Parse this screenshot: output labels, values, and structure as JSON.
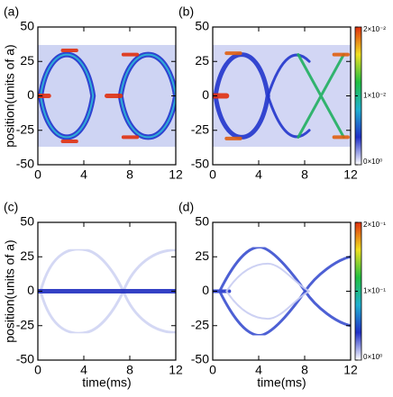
{
  "chart_data": [
    {
      "type": "heatmap",
      "title": "(a)",
      "ylabel": "position(units of a)",
      "xlim": [
        0,
        12
      ],
      "xticks": [
        0,
        4,
        8,
        12
      ],
      "ylim": [
        -50,
        50
      ],
      "yticks": [
        50,
        25,
        0,
        -25,
        -50
      ]
    },
    {
      "type": "heatmap",
      "title": "(b)",
      "xlim": [
        0,
        12
      ],
      "xticks": [
        0,
        4,
        8,
        12
      ],
      "ylim": [
        -50,
        50
      ],
      "yticks": [
        50,
        25,
        0,
        -25,
        -50
      ],
      "colorbar": {
        "lim": [
          0,
          0.02
        ],
        "ticks": [
          {
            "value": 0.02,
            "label": "2×10⁻²"
          },
          {
            "value": 0.01,
            "label": "1×10⁻²"
          },
          {
            "value": 0,
            "label": "0×10⁰"
          }
        ],
        "colors": [
          "#ffffff",
          "#2030c8",
          "#20b0d0",
          "#20c040",
          "#f0e020",
          "#e03010"
        ]
      }
    },
    {
      "type": "heatmap",
      "title": "(c)",
      "xlabel": "time(ms)",
      "ylabel": "position(units of a)",
      "xlim": [
        0,
        12
      ],
      "xticks": [
        0,
        4,
        8,
        12
      ],
      "ylim": [
        -50,
        50
      ],
      "yticks": [
        50,
        25,
        0,
        -25,
        -50
      ]
    },
    {
      "type": "heatmap",
      "title": "(d)",
      "xlabel": "time(ms)",
      "xlim": [
        0,
        12
      ],
      "xticks": [
        0,
        4,
        8,
        12
      ],
      "ylim": [
        -50,
        50
      ],
      "yticks": [
        50,
        25,
        0,
        -25,
        -50
      ],
      "colorbar": {
        "lim": [
          0,
          0.2
        ],
        "ticks": [
          {
            "value": 0.2,
            "label": "2×10⁻¹"
          },
          {
            "value": 0.1,
            "label": "1×10⁻¹"
          },
          {
            "value": 0,
            "label": "0×10⁰"
          }
        ],
        "colors": [
          "#ffffff",
          "#2030c8",
          "#20b0d0",
          "#20c040",
          "#f0e020",
          "#e03010"
        ]
      }
    }
  ]
}
